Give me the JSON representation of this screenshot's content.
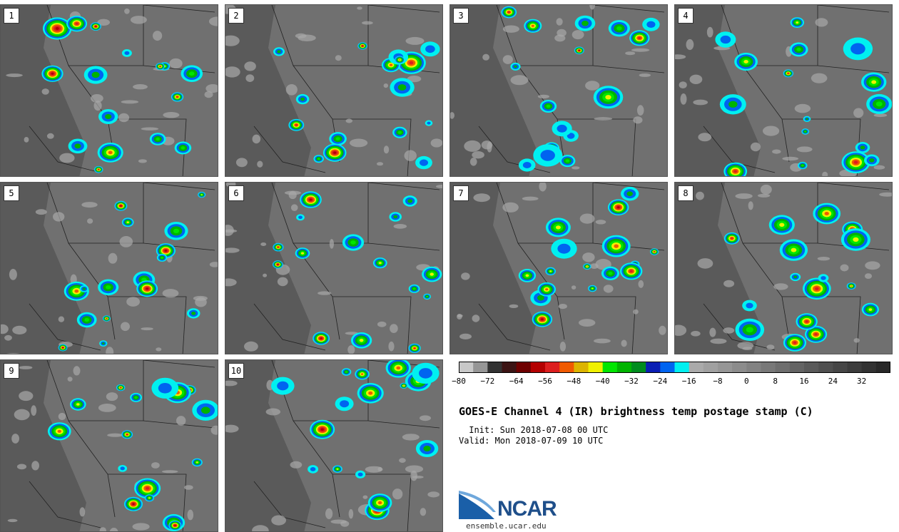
{
  "panels": [
    {
      "label": "1"
    },
    {
      "label": "2"
    },
    {
      "label": "3"
    },
    {
      "label": "4"
    },
    {
      "label": "5"
    },
    {
      "label": "6"
    },
    {
      "label": "7"
    },
    {
      "label": "8"
    },
    {
      "label": "9"
    },
    {
      "label": "10"
    }
  ],
  "colorbar": {
    "colors": [
      "#c8c8c8",
      "#969696",
      "#323232",
      "#3c1414",
      "#6e0000",
      "#b40000",
      "#dc1e1e",
      "#f05a00",
      "#dcb400",
      "#f0f000",
      "#00e600",
      "#00b400",
      "#008c1e",
      "#0a1eb4",
      "#0064f0",
      "#00f0f0",
      "#aaaaaa",
      "#a0a0a0",
      "#969696",
      "#8c8c8c",
      "#828282",
      "#787878",
      "#6e6e6e",
      "#646464",
      "#5a5a5a",
      "#505050",
      "#464646",
      "#3c3c3c",
      "#323232",
      "#282828"
    ],
    "tick_labels": [
      "−80",
      "−72",
      "−64",
      "−56",
      "−48",
      "−40",
      "−32",
      "−24",
      "−16",
      "−8",
      "0",
      "8",
      "16",
      "24",
      "32"
    ]
  },
  "title": "GOES-E Channel 4 (IR) brightness temp postage stamp (C)",
  "init": " Init: Sun 2018-07-08 00 UTC",
  "valid": "Valid: Mon 2018-07-09 10 UTC",
  "logo": {
    "text": "NCAR",
    "site": "ensemble.ucar.edu"
  }
}
